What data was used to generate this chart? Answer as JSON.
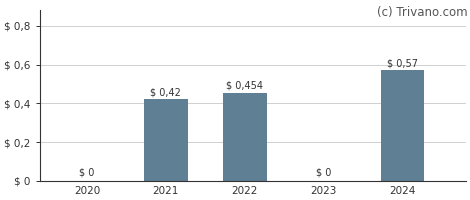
{
  "categories": [
    2020,
    2021,
    2022,
    2023,
    2024
  ],
  "values": [
    0,
    0.42,
    0.454,
    0,
    0.57
  ],
  "labels": [
    "$ 0",
    "$ 0,42",
    "$ 0,454",
    "$ 0",
    "$ 0,57"
  ],
  "bar_color": "#5f7f95",
  "background_color": "#ffffff",
  "grid_color": "#d0d0d0",
  "ylim": [
    0,
    0.88
  ],
  "yticks": [
    0,
    0.2,
    0.4,
    0.6,
    0.8
  ],
  "ytick_labels": [
    "$ 0",
    "$ 0,2",
    "$ 0,4",
    "$ 0,6",
    "$ 0,8"
  ],
  "watermark": "(c) Trivano.com",
  "watermark_color": "#555555",
  "label_color": "#333333",
  "label_fontsize": 7.0,
  "tick_fontsize": 7.5,
  "watermark_fontsize": 8.5,
  "bar_width": 0.55
}
